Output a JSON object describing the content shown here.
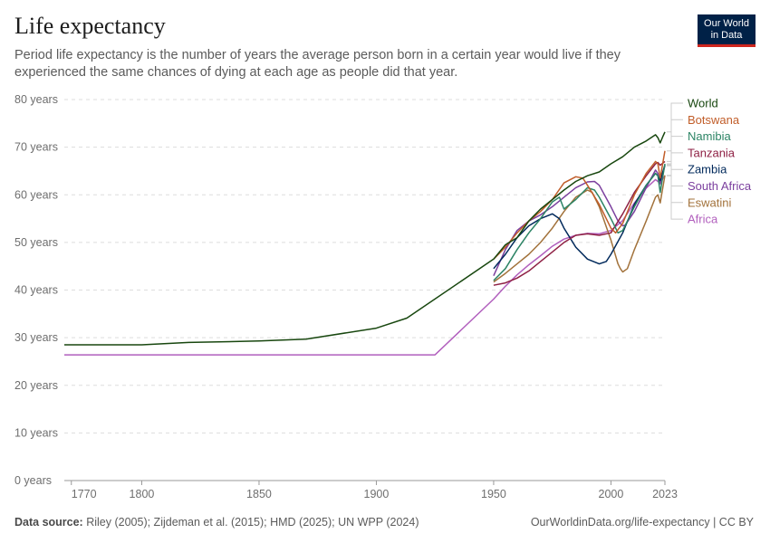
{
  "header": {
    "title": "Life expectancy",
    "subtitle": "Period life expectancy is the number of years the average person born in a certain year would live if they experienced the same chances of dying at each age as people did that year."
  },
  "logo": {
    "line1": "Our World",
    "line2": "in Data",
    "color": "#002147",
    "accent": "#ce261e"
  },
  "footer": {
    "source_label": "Data source:",
    "source_text": "Riley (2005); Zijdeman et al. (2015); HMD (2025); UN WPP (2024)",
    "url": "OurWorldinData.org/life-expectancy | CC BY"
  },
  "chart_data": {
    "type": "line",
    "title": "Life expectancy",
    "xlabel": "",
    "ylabel": "",
    "xlim": [
      1767,
      2023
    ],
    "ylim": [
      0,
      80
    ],
    "x_ticks": [
      1770,
      1800,
      1850,
      1900,
      1950,
      2000,
      2023
    ],
    "y_ticks": [
      {
        "value": 0,
        "label": "0 years"
      },
      {
        "value": 10,
        "label": "10 years"
      },
      {
        "value": 20,
        "label": "20 years"
      },
      {
        "value": 30,
        "label": "30 years"
      },
      {
        "value": 40,
        "label": "40 years"
      },
      {
        "value": 50,
        "label": "50 years"
      },
      {
        "value": 60,
        "label": "60 years"
      },
      {
        "value": 70,
        "label": "70 years"
      },
      {
        "value": 80,
        "label": "80 years"
      }
    ],
    "grid": "horizontal",
    "legend_position": "right",
    "series": [
      {
        "name": "Africa",
        "color": "#b15fbd",
        "points": [
          [
            1767,
            26.4
          ],
          [
            1925,
            26.4
          ],
          [
            1950,
            38.1
          ],
          [
            1955,
            40.8
          ],
          [
            1960,
            43.2
          ],
          [
            1965,
            45.3
          ],
          [
            1970,
            47.2
          ],
          [
            1975,
            49.2
          ],
          [
            1980,
            50.7
          ],
          [
            1985,
            51.5
          ],
          [
            1990,
            51.9
          ],
          [
            1995,
            51.8
          ],
          [
            2000,
            52.5
          ],
          [
            2005,
            54.6
          ],
          [
            2010,
            58.3
          ],
          [
            2015,
            61.4
          ],
          [
            2019,
            63.2
          ],
          [
            2020,
            62.8
          ],
          [
            2021,
            62.6
          ],
          [
            2023,
            64.0
          ]
        ]
      },
      {
        "name": "Eswatini",
        "color": "#a2723b",
        "points": [
          [
            1950,
            41.7
          ],
          [
            1955,
            43.5
          ],
          [
            1960,
            45.5
          ],
          [
            1965,
            47.5
          ],
          [
            1970,
            50.0
          ],
          [
            1975,
            53.0
          ],
          [
            1980,
            56.5
          ],
          [
            1985,
            59.5
          ],
          [
            1990,
            61.0
          ],
          [
            1992,
            60.5
          ],
          [
            1995,
            57.5
          ],
          [
            2000,
            50.5
          ],
          [
            2003,
            45.5
          ],
          [
            2004,
            44.5
          ],
          [
            2005,
            43.8
          ],
          [
            2007,
            44.5
          ],
          [
            2010,
            48.5
          ],
          [
            2015,
            54.5
          ],
          [
            2019,
            59.5
          ],
          [
            2020,
            60.0
          ],
          [
            2021,
            58.3
          ],
          [
            2023,
            64.1
          ]
        ]
      },
      {
        "name": "South Africa",
        "color": "#7b3f9e",
        "points": [
          [
            1950,
            43.0
          ],
          [
            1955,
            48.5
          ],
          [
            1960,
            52.5
          ],
          [
            1965,
            54.5
          ],
          [
            1970,
            55.8
          ],
          [
            1975,
            57.5
          ],
          [
            1980,
            59.5
          ],
          [
            1985,
            61.5
          ],
          [
            1990,
            62.7
          ],
          [
            1993,
            62.8
          ],
          [
            1995,
            62.0
          ],
          [
            2000,
            57.5
          ],
          [
            2003,
            54.5
          ],
          [
            2005,
            53.5
          ],
          [
            2006,
            53.6
          ],
          [
            2010,
            56.5
          ],
          [
            2015,
            61.5
          ],
          [
            2019,
            65.2
          ],
          [
            2020,
            64.5
          ],
          [
            2021,
            62.3
          ],
          [
            2023,
            66.1
          ]
        ]
      },
      {
        "name": "Zambia",
        "color": "#00295b",
        "points": [
          [
            1950,
            44.5
          ],
          [
            1955,
            47.5
          ],
          [
            1960,
            51.0
          ],
          [
            1965,
            53.5
          ],
          [
            1970,
            55.0
          ],
          [
            1975,
            56.0
          ],
          [
            1978,
            55.0
          ],
          [
            1980,
            53.0
          ],
          [
            1985,
            49.0
          ],
          [
            1990,
            46.5
          ],
          [
            1995,
            45.5
          ],
          [
            1998,
            46.0
          ],
          [
            2000,
            47.5
          ],
          [
            2005,
            52.0
          ],
          [
            2010,
            58.0
          ],
          [
            2015,
            62.0
          ],
          [
            2019,
            64.5
          ],
          [
            2020,
            64.0
          ],
          [
            2021,
            63.0
          ],
          [
            2023,
            66.3
          ]
        ]
      },
      {
        "name": "Tanzania",
        "color": "#8e2044",
        "points": [
          [
            1950,
            41.0
          ],
          [
            1955,
            41.5
          ],
          [
            1960,
            42.5
          ],
          [
            1965,
            44.0
          ],
          [
            1970,
            46.0
          ],
          [
            1975,
            48.0
          ],
          [
            1980,
            50.0
          ],
          [
            1985,
            51.5
          ],
          [
            1990,
            51.8
          ],
          [
            1995,
            51.5
          ],
          [
            2000,
            52.0
          ],
          [
            2005,
            56.0
          ],
          [
            2010,
            60.5
          ],
          [
            2015,
            64.0
          ],
          [
            2019,
            66.5
          ],
          [
            2020,
            66.8
          ],
          [
            2021,
            66.2
          ],
          [
            2023,
            67.0
          ]
        ]
      },
      {
        "name": "Namibia",
        "color": "#2c8465",
        "points": [
          [
            1950,
            42.0
          ],
          [
            1955,
            44.5
          ],
          [
            1960,
            48.5
          ],
          [
            1965,
            52.0
          ],
          [
            1970,
            55.0
          ],
          [
            1975,
            58.5
          ],
          [
            1978,
            59.5
          ],
          [
            1980,
            57.0
          ],
          [
            1985,
            59.0
          ],
          [
            1990,
            61.5
          ],
          [
            1993,
            61.0
          ],
          [
            1995,
            59.5
          ],
          [
            2000,
            55.0
          ],
          [
            2003,
            52.0
          ],
          [
            2005,
            52.5
          ],
          [
            2010,
            57.5
          ],
          [
            2015,
            62.0
          ],
          [
            2019,
            64.5
          ],
          [
            2020,
            64.0
          ],
          [
            2021,
            60.5
          ],
          [
            2023,
            66.5
          ]
        ]
      },
      {
        "name": "Botswana",
        "color": "#c15d29",
        "points": [
          [
            1950,
            46.5
          ],
          [
            1955,
            49.0
          ],
          [
            1960,
            52.0
          ],
          [
            1965,
            54.5
          ],
          [
            1970,
            56.5
          ],
          [
            1975,
            59.0
          ],
          [
            1980,
            62.5
          ],
          [
            1985,
            63.8
          ],
          [
            1988,
            63.5
          ],
          [
            1990,
            62.0
          ],
          [
            1995,
            58.0
          ],
          [
            2000,
            53.0
          ],
          [
            2002,
            52.0
          ],
          [
            2005,
            54.0
          ],
          [
            2010,
            60.0
          ],
          [
            2015,
            64.5
          ],
          [
            2019,
            67.0
          ],
          [
            2020,
            66.5
          ],
          [
            2021,
            63.5
          ],
          [
            2023,
            69.2
          ]
        ]
      },
      {
        "name": "World",
        "color": "#18470f",
        "points": [
          [
            1767,
            28.5
          ],
          [
            1800,
            28.5
          ],
          [
            1820,
            29.0
          ],
          [
            1850,
            29.3
          ],
          [
            1870,
            29.7
          ],
          [
            1900,
            32.0
          ],
          [
            1913,
            34.1
          ],
          [
            1950,
            46.5
          ],
          [
            1955,
            49.5
          ],
          [
            1960,
            51.0
          ],
          [
            1965,
            54.5
          ],
          [
            1970,
            57.0
          ],
          [
            1975,
            59.0
          ],
          [
            1980,
            61.0
          ],
          [
            1985,
            62.8
          ],
          [
            1990,
            64.0
          ],
          [
            1995,
            64.8
          ],
          [
            2000,
            66.5
          ],
          [
            2005,
            68.0
          ],
          [
            2010,
            70.0
          ],
          [
            2015,
            71.3
          ],
          [
            2019,
            72.6
          ],
          [
            2020,
            72.0
          ],
          [
            2021,
            70.9
          ],
          [
            2022,
            72.1
          ],
          [
            2023,
            73.2
          ]
        ]
      }
    ],
    "legend": [
      "World",
      "Botswana",
      "Namibia",
      "Tanzania",
      "Zambia",
      "South Africa",
      "Eswatini",
      "Africa"
    ]
  }
}
